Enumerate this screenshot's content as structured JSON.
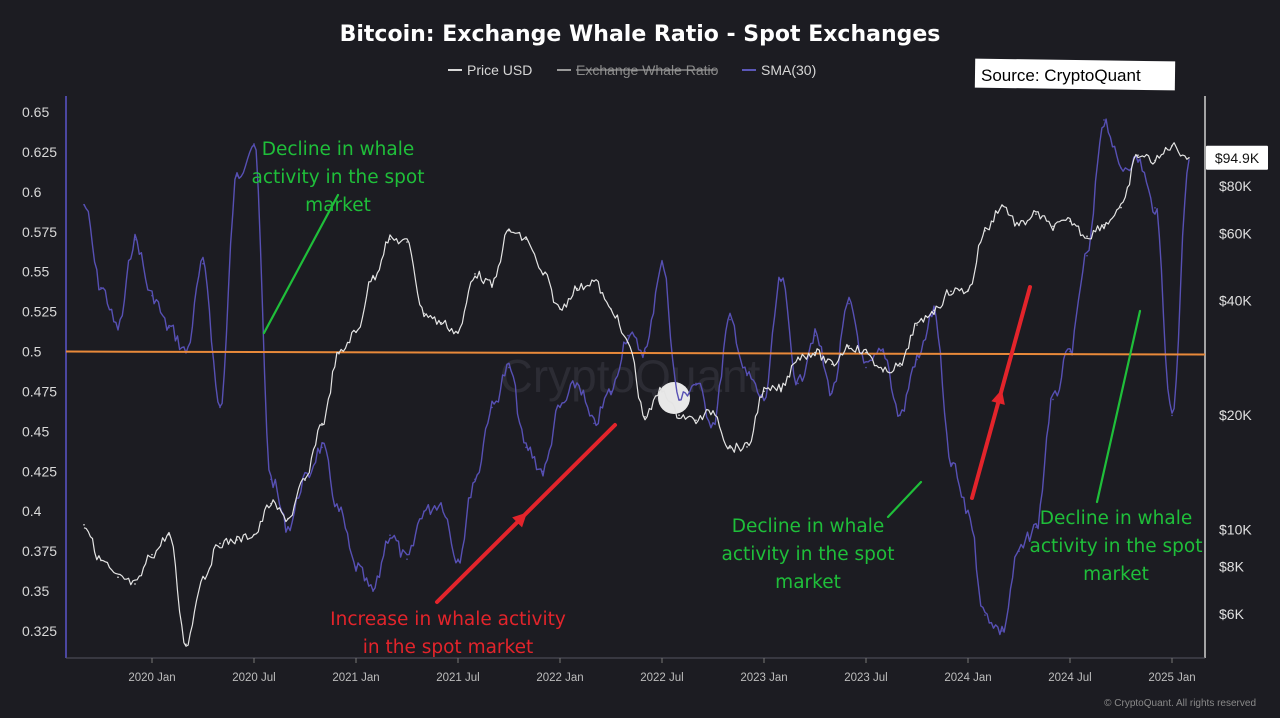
{
  "chart_data": {
    "type": "line",
    "title": "Bitcoin: Exchange Whale Ratio - Spot Exchanges",
    "source_label": "Source: CryptoQuant",
    "watermark": "CryptoQuant",
    "copyright": "© CryptoQuant. All rights reserved",
    "price_badge": "$94.9K",
    "legend": [
      {
        "label": "Price USD",
        "color": "#d8d8d8",
        "strikethrough": false
      },
      {
        "label": "Exchange Whale Ratio",
        "color": "#9a9a9a",
        "strikethrough": true
      },
      {
        "label": "SMA(30)",
        "color": "#5b57b8",
        "strikethrough": false
      }
    ],
    "colors": {
      "background": "#1c1c22",
      "price": "#e4e4e4",
      "sma": "#5750b4",
      "threshold": "#e8893a",
      "green_annotation": "#1fbf3a",
      "red_annotation": "#e3242b"
    },
    "x_ticks": [
      "2020 Jan",
      "2020 Jul",
      "2021 Jan",
      "2021 Jul",
      "2022 Jan",
      "2022 Jul",
      "2023 Jan",
      "2023 Jul",
      "2024 Jan",
      "2024 Jul",
      "2025 Jan"
    ],
    "xlim": [
      "2019-09",
      "2025-02"
    ],
    "y_left": {
      "ticks": [
        "0.65",
        "0.625",
        "0.6",
        "0.575",
        "0.55",
        "0.525",
        "0.5",
        "0.475",
        "0.45",
        "0.425",
        "0.4",
        "0.375",
        "0.35",
        "0.325"
      ],
      "ylim": [
        0.325,
        0.65
      ]
    },
    "y_right": {
      "scale": "log",
      "ticks": [
        "$80K",
        "$60K",
        "$40K",
        "$20K",
        "$10K",
        "$8K",
        "$6K"
      ],
      "ylim": [
        4800,
        115000
      ]
    },
    "threshold_line": 0.5,
    "series": [
      {
        "name": "SMA(30)",
        "axis": "left",
        "points": [
          [
            "2019-09",
            0.592
          ],
          [
            "2019-10",
            0.54
          ],
          [
            "2019-11",
            0.515
          ],
          [
            "2019-12",
            0.57
          ],
          [
            "2020-01",
            0.535
          ],
          [
            "2020-02",
            0.515
          ],
          [
            "2020-03",
            0.5
          ],
          [
            "2020-04",
            0.555
          ],
          [
            "2020-05",
            0.465
          ],
          [
            "2020-06",
            0.61
          ],
          [
            "2020-07",
            0.63
          ],
          [
            "2020-08",
            0.42
          ],
          [
            "2020-09",
            0.39
          ],
          [
            "2020-10",
            0.42
          ],
          [
            "2020-11",
            0.44
          ],
          [
            "2020-12",
            0.4
          ],
          [
            "2021-01",
            0.365
          ],
          [
            "2021-02",
            0.35
          ],
          [
            "2021-03",
            0.385
          ],
          [
            "2021-04",
            0.37
          ],
          [
            "2021-05",
            0.4
          ],
          [
            "2021-06",
            0.405
          ],
          [
            "2021-07",
            0.37
          ],
          [
            "2021-08",
            0.42
          ],
          [
            "2021-09",
            0.465
          ],
          [
            "2021-10",
            0.49
          ],
          [
            "2021-11",
            0.44
          ],
          [
            "2021-12",
            0.425
          ],
          [
            "2022-01",
            0.465
          ],
          [
            "2022-02",
            0.48
          ],
          [
            "2022-03",
            0.455
          ],
          [
            "2022-04",
            0.475
          ],
          [
            "2022-05",
            0.51
          ],
          [
            "2022-06",
            0.5
          ],
          [
            "2022-07",
            0.555
          ],
          [
            "2022-08",
            0.47
          ],
          [
            "2022-09",
            0.48
          ],
          [
            "2022-10",
            0.455
          ],
          [
            "2022-11",
            0.52
          ],
          [
            "2022-12",
            0.485
          ],
          [
            "2023-01",
            0.47
          ],
          [
            "2023-02",
            0.545
          ],
          [
            "2023-03",
            0.48
          ],
          [
            "2023-04",
            0.51
          ],
          [
            "2023-05",
            0.475
          ],
          [
            "2023-06",
            0.53
          ],
          [
            "2023-07",
            0.49
          ],
          [
            "2023-08",
            0.5
          ],
          [
            "2023-09",
            0.46
          ],
          [
            "2023-10",
            0.495
          ],
          [
            "2023-11",
            0.525
          ],
          [
            "2023-12",
            0.43
          ],
          [
            "2024-01",
            0.4
          ],
          [
            "2024-02",
            0.335
          ],
          [
            "2024-03",
            0.325
          ],
          [
            "2024-04",
            0.375
          ],
          [
            "2024-05",
            0.39
          ],
          [
            "2024-06",
            0.47
          ],
          [
            "2024-07",
            0.5
          ],
          [
            "2024-08",
            0.56
          ],
          [
            "2024-09",
            0.645
          ],
          [
            "2024-10",
            0.615
          ],
          [
            "2024-11",
            0.62
          ],
          [
            "2024-12",
            0.59
          ],
          [
            "2025-01",
            0.46
          ],
          [
            "2025-02",
            0.62
          ]
        ]
      },
      {
        "name": "Price USD",
        "axis": "right",
        "points": [
          [
            "2019-09",
            10300
          ],
          [
            "2019-10",
            8300
          ],
          [
            "2019-11",
            7500
          ],
          [
            "2019-12",
            7200
          ],
          [
            "2020-01",
            8600
          ],
          [
            "2020-02",
            9700
          ],
          [
            "2020-03",
            5000
          ],
          [
            "2020-04",
            7500
          ],
          [
            "2020-05",
            9200
          ],
          [
            "2020-06",
            9400
          ],
          [
            "2020-07",
            9700
          ],
          [
            "2020-08",
            11700
          ],
          [
            "2020-09",
            10700
          ],
          [
            "2020-10",
            13500
          ],
          [
            "2020-11",
            19000
          ],
          [
            "2020-12",
            29000
          ],
          [
            "2021-01",
            33000
          ],
          [
            "2021-02",
            46000
          ],
          [
            "2021-03",
            58000
          ],
          [
            "2021-04",
            57000
          ],
          [
            "2021-05",
            37000
          ],
          [
            "2021-06",
            35000
          ],
          [
            "2021-07",
            33000
          ],
          [
            "2021-08",
            47000
          ],
          [
            "2021-09",
            44000
          ],
          [
            "2021-10",
            61000
          ],
          [
            "2021-11",
            58000
          ],
          [
            "2021-12",
            47000
          ],
          [
            "2022-01",
            38000
          ],
          [
            "2022-02",
            43000
          ],
          [
            "2022-03",
            45000
          ],
          [
            "2022-04",
            38000
          ],
          [
            "2022-05",
            31000
          ],
          [
            "2022-06",
            19800
          ],
          [
            "2022-07",
            23300
          ],
          [
            "2022-08",
            20000
          ],
          [
            "2022-09",
            19400
          ],
          [
            "2022-10",
            20500
          ],
          [
            "2022-11",
            16400
          ],
          [
            "2022-12",
            16500
          ],
          [
            "2023-01",
            23100
          ],
          [
            "2023-02",
            23500
          ],
          [
            "2023-03",
            28400
          ],
          [
            "2023-04",
            29200
          ],
          [
            "2023-05",
            27200
          ],
          [
            "2023-06",
            30400
          ],
          [
            "2023-07",
            29200
          ],
          [
            "2023-08",
            26000
          ],
          [
            "2023-09",
            26900
          ],
          [
            "2023-10",
            34500
          ],
          [
            "2023-11",
            37700
          ],
          [
            "2023-12",
            42300
          ],
          [
            "2024-01",
            42600
          ],
          [
            "2024-02",
            61000
          ],
          [
            "2024-03",
            71000
          ],
          [
            "2024-04",
            63000
          ],
          [
            "2024-05",
            67500
          ],
          [
            "2024-06",
            62700
          ],
          [
            "2024-07",
            64600
          ],
          [
            "2024-08",
            59000
          ],
          [
            "2024-09",
            63300
          ],
          [
            "2024-10",
            70200
          ],
          [
            "2024-11",
            96400
          ],
          [
            "2024-12",
            93400
          ],
          [
            "2025-01",
            102000
          ],
          [
            "2025-02",
            94900
          ]
        ]
      }
    ],
    "annotations": [
      {
        "lines": [
          "Decline in whale",
          "activity in the spot",
          "market"
        ],
        "color": "green"
      },
      {
        "lines": [
          "Increase in whale activity",
          "in the spot market"
        ],
        "color": "red"
      },
      {
        "lines": [
          "Decline in whale",
          "activity in the spot",
          "market"
        ],
        "color": "green"
      },
      {
        "lines": [
          "Decline in whale",
          "activity in the spot",
          "market"
        ],
        "color": "green"
      }
    ]
  }
}
